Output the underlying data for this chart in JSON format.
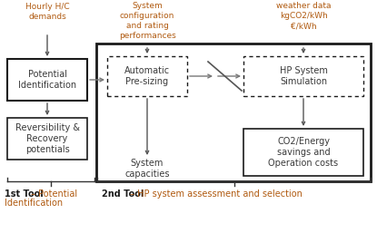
{
  "bg_color": "#ffffff",
  "text_color_dark": "#3a3a3a",
  "text_color_brown": "#b05a10",
  "box_edge_color": "#1a1a1a",
  "outer_box_color": "#1a1a1a",
  "arrow_color": "#666666",
  "brace_color": "#1a1a1a",
  "input_label1": "Hourly H/C\ndemands",
  "input_label2": "System\nconfiguration\nand rating\nperformances",
  "input_label3": "weather data\nkgCO2/kWh\n€/kWh",
  "box1_text": "Potential\nIdentification",
  "box2_text": "Automatic\nPre-sizing",
  "box3_text": "HP System\nSimulation",
  "box4_text": "Reversibility &\nRecovery\npotentials",
  "box5_text": "System\ncapacities",
  "box6_text": "CO2/Energy\nsavings and\nOperation costs",
  "tool1_bold": "1st Tool",
  "tool1_rest": " – Potential",
  "tool2_bold": "2nd Tool",
  "tool2_rest": " – HP system assessment and selection"
}
